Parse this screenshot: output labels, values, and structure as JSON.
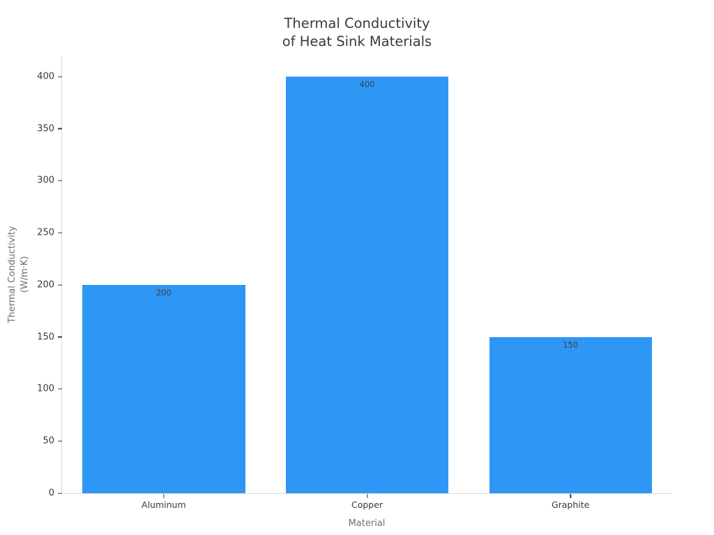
{
  "chart_data": {
    "type": "bar",
    "title": "Thermal Conductivity of Heat Sink Materials",
    "title_line1": "Thermal Conductivity",
    "title_line2": "of Heat Sink Materials",
    "xlabel": "Material",
    "ylabel_line1": "Thermal Conductivity",
    "ylabel_line2": "(W/m·K)",
    "categories": [
      "Aluminum",
      "Copper",
      "Graphite"
    ],
    "values": [
      200,
      400,
      150
    ],
    "bar_value_labels": [
      "200",
      "400",
      "150"
    ],
    "yticks": [
      0,
      50,
      100,
      150,
      200,
      250,
      300,
      350,
      400
    ],
    "ylim": [
      0,
      420
    ],
    "grid": false,
    "legend_position": "none",
    "bar_color": "#2E96F5",
    "colors": {
      "bar": "#2E96F5",
      "title_text": "#3A3A3A",
      "tick_text": "#3A3A3A",
      "axis_label_text": "#6F6F6F",
      "bar_value_text": "#3F3F3F",
      "axis_line": "#D9D9D9",
      "tick_mark": "#3A3A3A",
      "background": "#FFFFFF"
    }
  }
}
